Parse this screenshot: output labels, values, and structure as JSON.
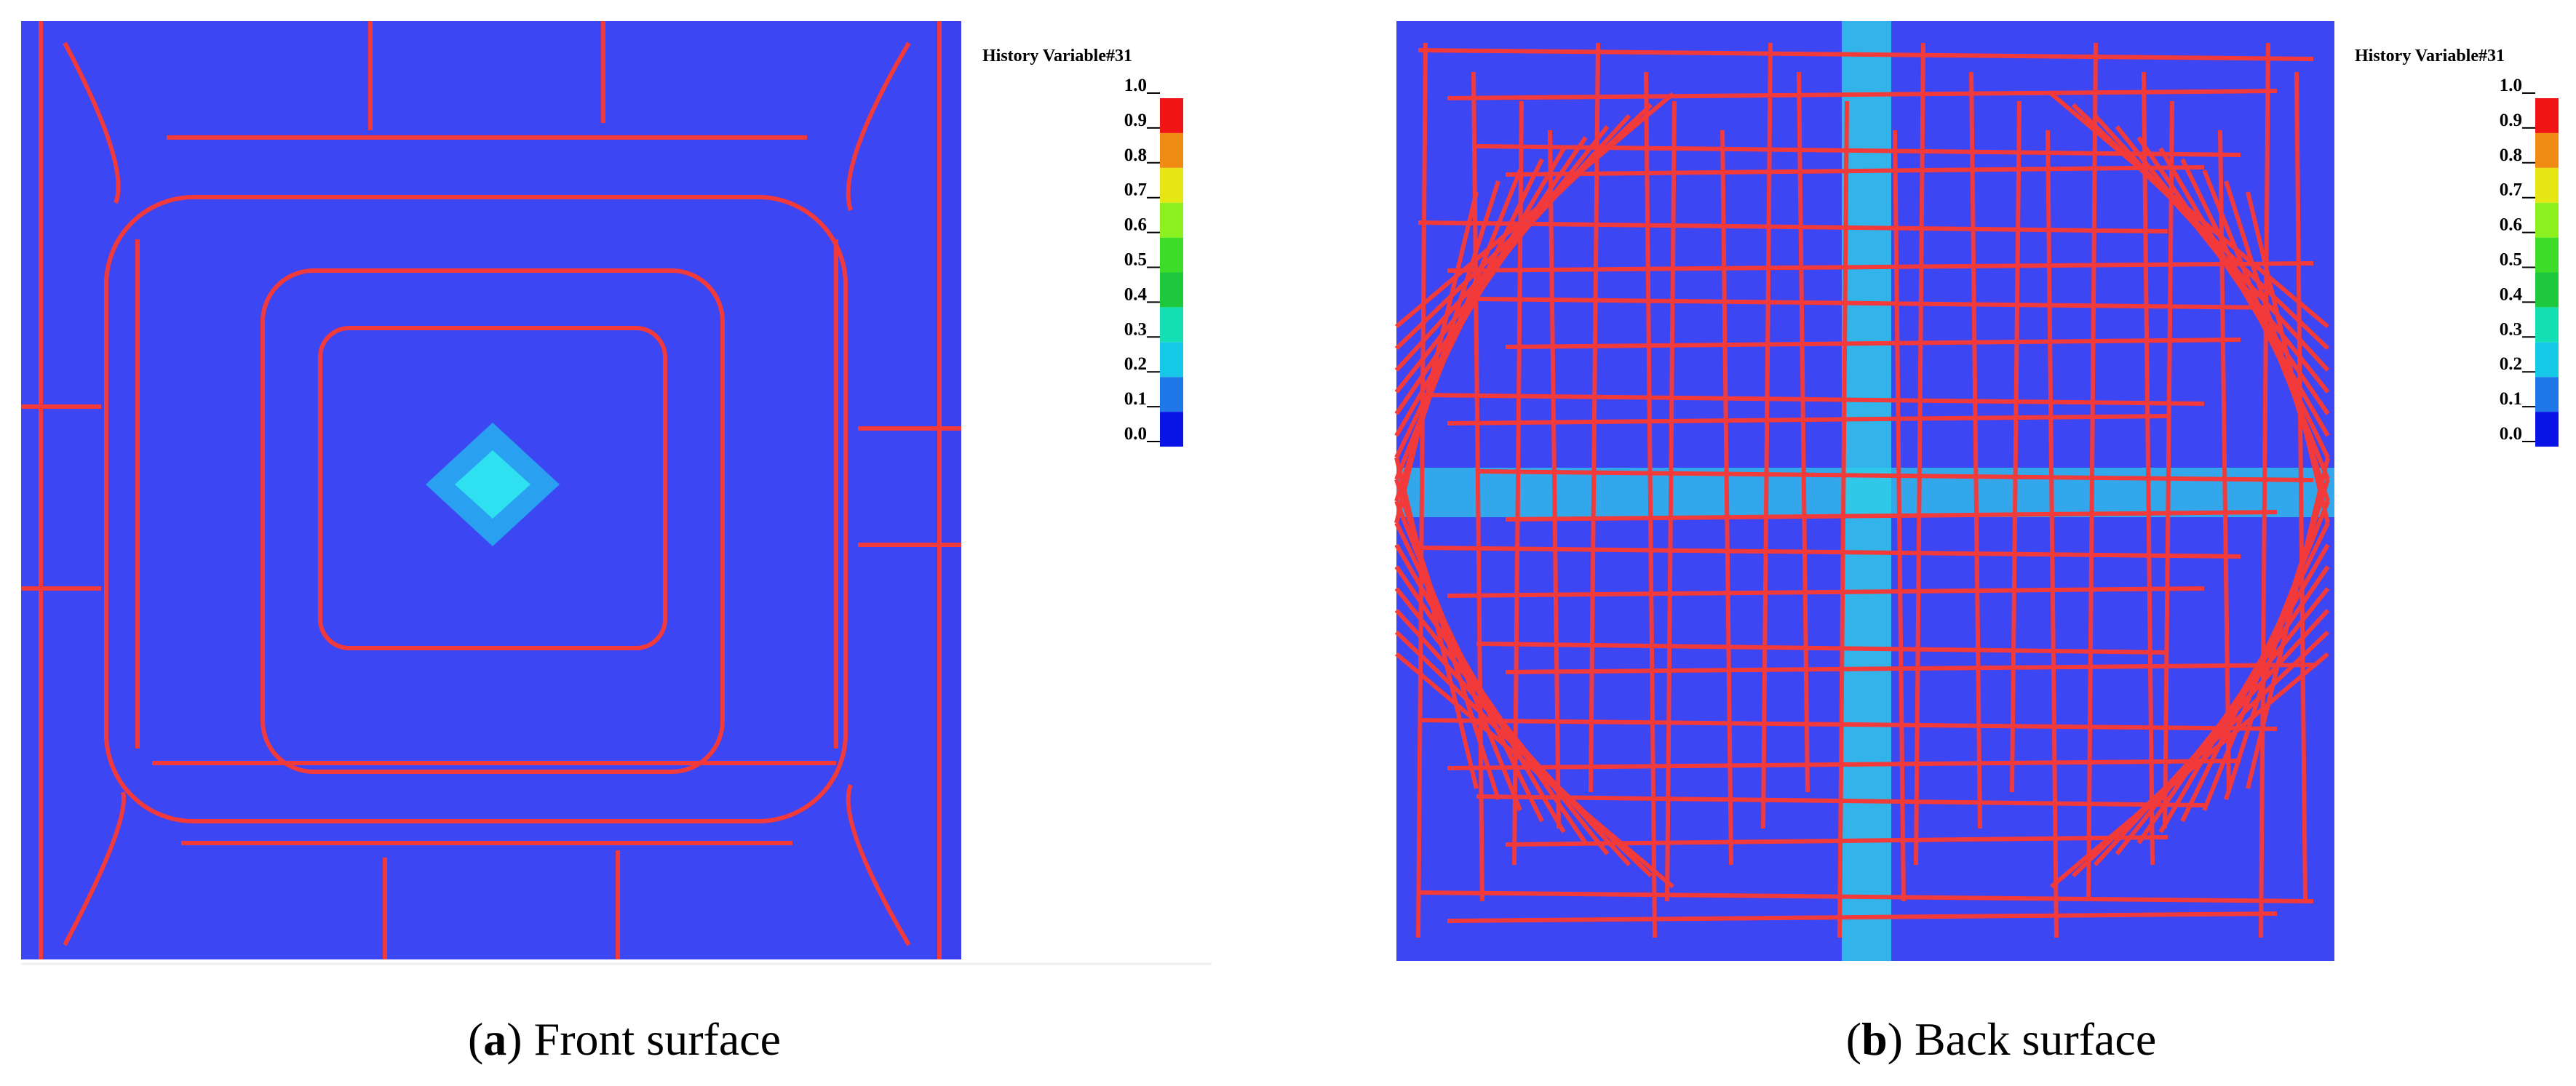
{
  "panels": [
    {
      "caption": [
        "(",
        "a",
        ") Front surface"
      ],
      "colorbar": {
        "title": "History Variable#31",
        "lim": [
          0,
          1
        ],
        "ticks": [
          {
            "value": 0,
            "label": "0.0"
          },
          0.1,
          0.2,
          0.3,
          0.4,
          0.5,
          0.6,
          0.7,
          0.8,
          0.9,
          {
            "value": 1,
            "label": "1.0"
          }
        ],
        "colors": [
          "#0a14e6",
          "#1e78e8",
          "#14c8e6",
          "#14e0b4",
          "#1ec83c",
          "#3cdc28",
          "#8cf01e",
          "#e6e614",
          "#f08c14",
          "#f01414"
        ]
      }
    },
    {
      "caption": [
        "(",
        "b",
        ") Back surface"
      ],
      "colorbar": {
        "title": "History Variable#31",
        "lim": [
          0,
          1
        ],
        "ticks": [
          {
            "value": 0,
            "label": "0.0"
          },
          0.1,
          0.2,
          0.3,
          0.4,
          0.5,
          0.6,
          0.7,
          0.8,
          0.9,
          {
            "value": 1,
            "label": "1.0"
          }
        ],
        "colors": [
          "#0a14e6",
          "#1e78e8",
          "#14c8e6",
          "#14e0b4",
          "#1ec83c",
          "#3cdc28",
          "#8cf01e",
          "#e6e614",
          "#f08c14",
          "#f01414"
        ]
      }
    }
  ]
}
